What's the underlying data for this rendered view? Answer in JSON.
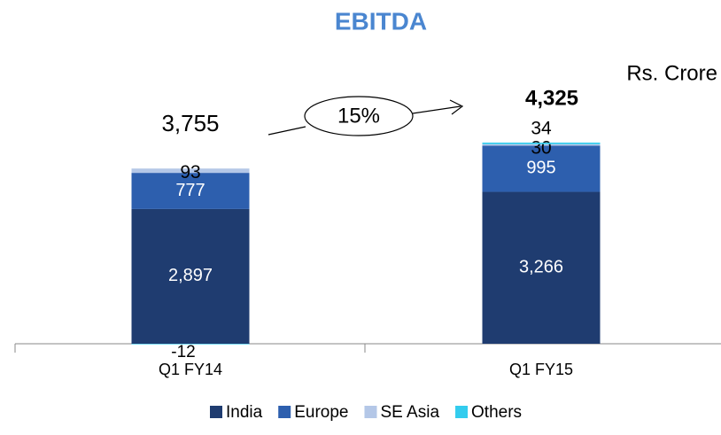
{
  "chart_data": {
    "type": "stacked_bar",
    "title": "EBITDA",
    "unit_label": "Rs. Crore",
    "categories": [
      "Q1 FY14",
      "Q1 FY15"
    ],
    "series": [
      {
        "name": "India",
        "color": "#1f3c70",
        "values": [
          2897,
          3266
        ],
        "value_labels": [
          "2,897",
          "3,266"
        ]
      },
      {
        "name": "Europe",
        "color": "#2d5fae",
        "values": [
          777,
          995
        ],
        "value_labels": [
          "777",
          "995"
        ]
      },
      {
        "name": "SE Asia",
        "color": "#b4c7e7",
        "values": [
          93,
          30
        ]
      },
      {
        "name": "Others",
        "color": "#33ccee",
        "values": [
          -12,
          34
        ]
      }
    ],
    "totals": [
      3755,
      4325
    ],
    "total_labels": [
      "3,755",
      "4,325"
    ],
    "growth_annotation": "15%",
    "ylim": [
      0,
      5000
    ]
  }
}
